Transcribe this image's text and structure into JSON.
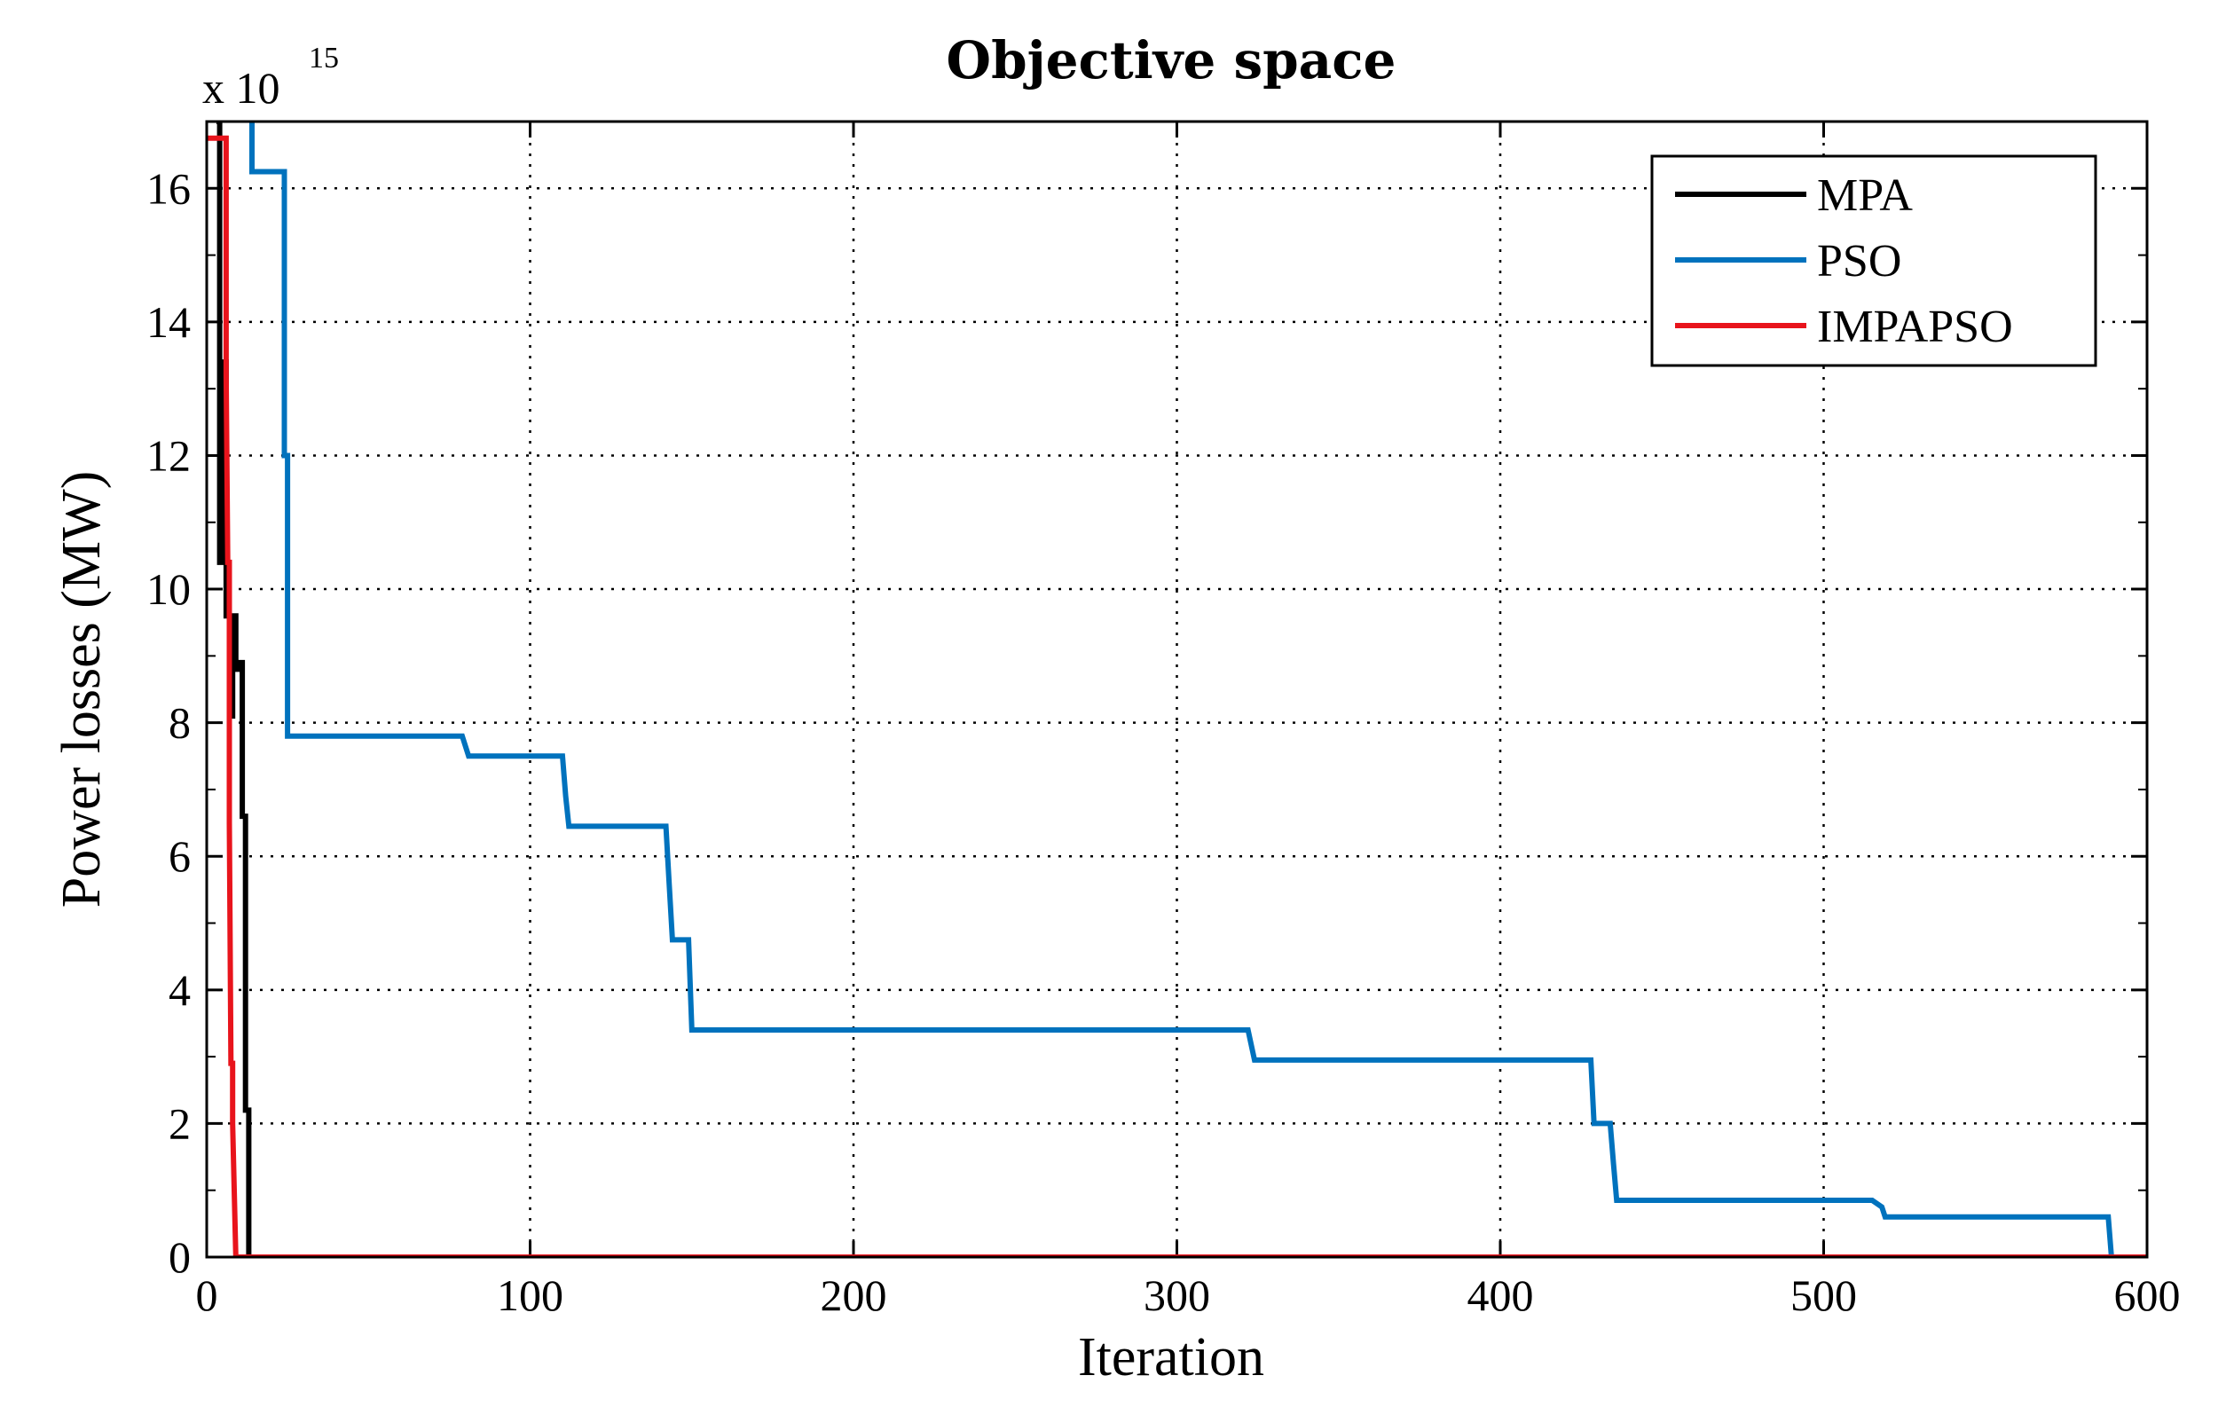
{
  "chart_data": {
    "type": "line",
    "title": "Objective space",
    "xlabel": "Iteration",
    "ylabel": "Power losses (MW)",
    "y_multiplier": "x 10",
    "y_multiplier_exponent": "15",
    "xlim": [
      0,
      600
    ],
    "ylim": [
      0,
      17
    ],
    "x_ticks": [
      "0",
      "100",
      "200",
      "300",
      "400",
      "500",
      "600"
    ],
    "y_ticks": [
      "0",
      "2",
      "4",
      "6",
      "8",
      "10",
      "12",
      "14",
      "16"
    ],
    "grid": true,
    "legend_position": "top-right",
    "series": [
      {
        "name": "MPA",
        "color": "#000000",
        "points": [
          [
            3,
            17
          ],
          [
            4,
            17
          ],
          [
            4,
            10.4
          ],
          [
            5,
            10.4
          ],
          [
            5,
            13.4
          ],
          [
            6,
            13.4
          ],
          [
            6,
            9.6
          ],
          [
            7,
            9.6
          ],
          [
            7,
            8.1
          ],
          [
            8,
            8.1
          ],
          [
            8,
            9.6
          ],
          [
            9,
            9.6
          ],
          [
            9,
            8.8
          ],
          [
            10,
            8.8
          ],
          [
            10,
            8.9
          ],
          [
            11,
            8.9
          ],
          [
            11,
            6.6
          ],
          [
            12,
            6.6
          ],
          [
            12,
            2.2
          ],
          [
            13,
            2.2
          ],
          [
            13,
            0
          ],
          [
            600,
            0
          ]
        ]
      },
      {
        "name": "PSO",
        "color": "#0072BD",
        "points": [
          [
            14,
            17
          ],
          [
            14,
            16.25
          ],
          [
            24,
            16.25
          ],
          [
            24,
            12
          ],
          [
            25,
            12
          ],
          [
            25,
            7.8
          ],
          [
            79,
            7.8
          ],
          [
            81,
            7.5
          ],
          [
            110,
            7.5
          ],
          [
            111,
            6.9
          ],
          [
            112,
            6.45
          ],
          [
            142,
            6.45
          ],
          [
            143,
            5.6
          ],
          [
            144,
            4.75
          ],
          [
            149,
            4.75
          ],
          [
            150,
            3.4
          ],
          [
            322,
            3.4
          ],
          [
            324,
            2.95
          ],
          [
            428,
            2.95
          ],
          [
            429,
            2.0
          ],
          [
            434,
            2.0
          ],
          [
            435,
            1.4
          ],
          [
            436,
            0.85
          ],
          [
            515,
            0.85
          ],
          [
            518,
            0.75
          ],
          [
            519,
            0.6
          ],
          [
            588,
            0.6
          ],
          [
            589,
            0
          ],
          [
            600,
            0
          ]
        ]
      },
      {
        "name": "IMPAPSO",
        "color": "#E8141C",
        "points": [
          [
            0,
            16.75
          ],
          [
            6,
            16.75
          ],
          [
            6,
            13.2
          ],
          [
            6.5,
            10.4
          ],
          [
            7,
            10.4
          ],
          [
            7,
            6.5
          ],
          [
            7.5,
            2.9
          ],
          [
            8,
            2.9
          ],
          [
            8,
            2
          ],
          [
            9,
            0
          ],
          [
            600,
            0
          ]
        ]
      }
    ]
  }
}
